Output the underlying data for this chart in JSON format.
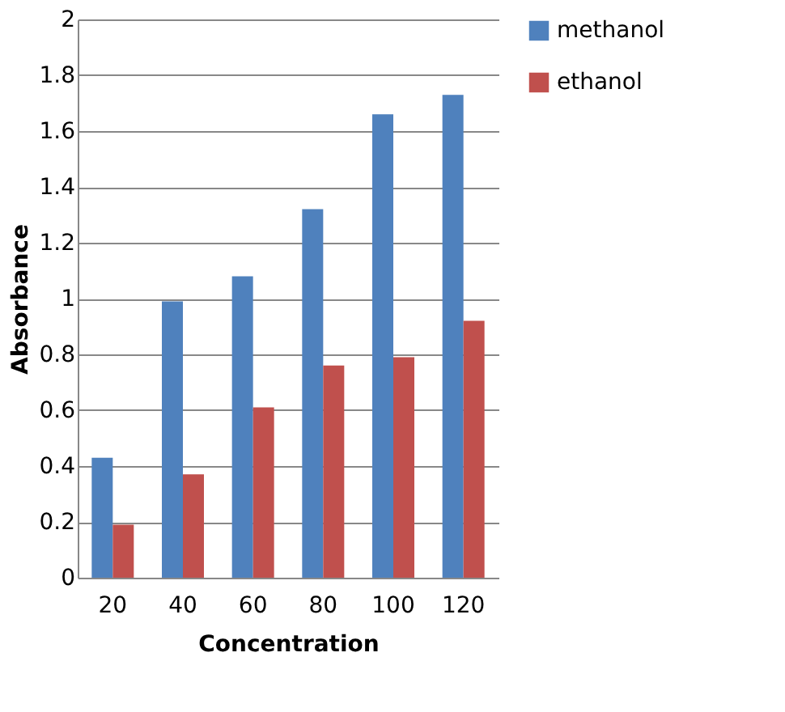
{
  "chart_data": {
    "type": "bar",
    "xlabel": "Concentration",
    "ylabel": "Absorbance",
    "categories": [
      "20",
      "40",
      "60",
      "80",
      "100",
      "120"
    ],
    "series": [
      {
        "name": "methanol",
        "color": "#4f81bd",
        "values": [
          0.43,
          0.99,
          1.08,
          1.32,
          1.66,
          1.73
        ]
      },
      {
        "name": "ethanol",
        "color": "#c0504d",
        "values": [
          0.19,
          0.37,
          0.61,
          0.76,
          0.79,
          0.92
        ]
      }
    ],
    "ylim": [
      0,
      2
    ],
    "yticks": [
      0,
      0.2,
      0.4,
      0.6,
      0.8,
      1,
      1.2,
      1.4,
      1.6,
      1.8,
      2
    ],
    "grid": "y",
    "legend": "right"
  }
}
